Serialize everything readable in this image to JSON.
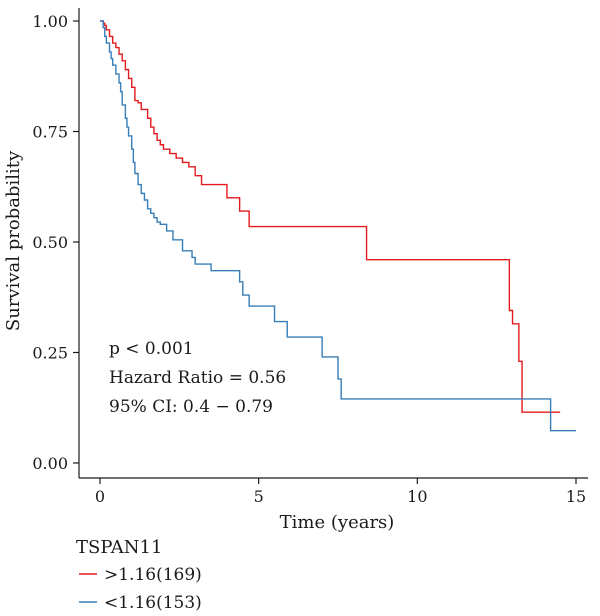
{
  "chart_data": {
    "type": "line",
    "subtype": "kaplan-meier step",
    "title": "",
    "xlabel": "Time (years)",
    "ylabel": "Survival probability",
    "xlim": [
      0,
      15
    ],
    "ylim": [
      0,
      1
    ],
    "x_ticks": [
      0,
      5,
      10,
      15
    ],
    "y_ticks": [
      0,
      0.25,
      0.5,
      0.75,
      1
    ],
    "x_tick_labels": [
      "0",
      "5",
      "10",
      "15"
    ],
    "y_tick_labels": [
      "0.00",
      "0.25",
      "0.50",
      "0.75",
      "1.00"
    ],
    "grid": false,
    "annotations": [
      "p < 0.001",
      "Hazard Ratio = 0.56",
      "95% CI: 0.4 − 0.79"
    ],
    "legend": {
      "title": "TSPAN11",
      "placement": "bottom"
    },
    "series": [
      {
        "name": ">1.16(169)",
        "color": "#e41a1c",
        "x": [
          0,
          0.1,
          0.15,
          0.2,
          0.3,
          0.4,
          0.5,
          0.6,
          0.7,
          0.8,
          0.9,
          1.0,
          1.1,
          1.2,
          1.3,
          1.5,
          1.6,
          1.7,
          1.8,
          1.9,
          2.0,
          2.2,
          2.4,
          2.6,
          2.8,
          3.0,
          3.2,
          4.0,
          4.4,
          4.7,
          8.4,
          12.9,
          13.0,
          13.2,
          13.3,
          14.5
        ],
        "y": [
          1.0,
          0.995,
          0.99,
          0.98,
          0.965,
          0.95,
          0.94,
          0.925,
          0.91,
          0.89,
          0.87,
          0.85,
          0.82,
          0.815,
          0.8,
          0.78,
          0.76,
          0.745,
          0.73,
          0.72,
          0.71,
          0.7,
          0.69,
          0.68,
          0.67,
          0.65,
          0.63,
          0.6,
          0.57,
          0.535,
          0.46,
          0.345,
          0.315,
          0.23,
          0.115,
          0.115
        ]
      },
      {
        "name": "<1.16(153)",
        "color": "#377eb8",
        "x": [
          0,
          0.1,
          0.15,
          0.2,
          0.3,
          0.35,
          0.4,
          0.5,
          0.6,
          0.65,
          0.7,
          0.8,
          0.85,
          0.9,
          1.0,
          1.05,
          1.1,
          1.2,
          1.3,
          1.4,
          1.5,
          1.6,
          1.7,
          1.8,
          1.9,
          2.1,
          2.3,
          2.6,
          2.9,
          3.0,
          3.5,
          4.4,
          4.5,
          4.7,
          5.5,
          5.9,
          7.0,
          7.5,
          7.6,
          14.2,
          15.0
        ],
        "y": [
          1.0,
          0.985,
          0.965,
          0.95,
          0.93,
          0.915,
          0.9,
          0.88,
          0.86,
          0.84,
          0.81,
          0.78,
          0.76,
          0.74,
          0.71,
          0.68,
          0.655,
          0.63,
          0.61,
          0.595,
          0.575,
          0.565,
          0.555,
          0.545,
          0.54,
          0.525,
          0.505,
          0.48,
          0.465,
          0.45,
          0.435,
          0.41,
          0.38,
          0.355,
          0.32,
          0.285,
          0.24,
          0.19,
          0.145,
          0.073,
          0.073
        ]
      }
    ]
  }
}
